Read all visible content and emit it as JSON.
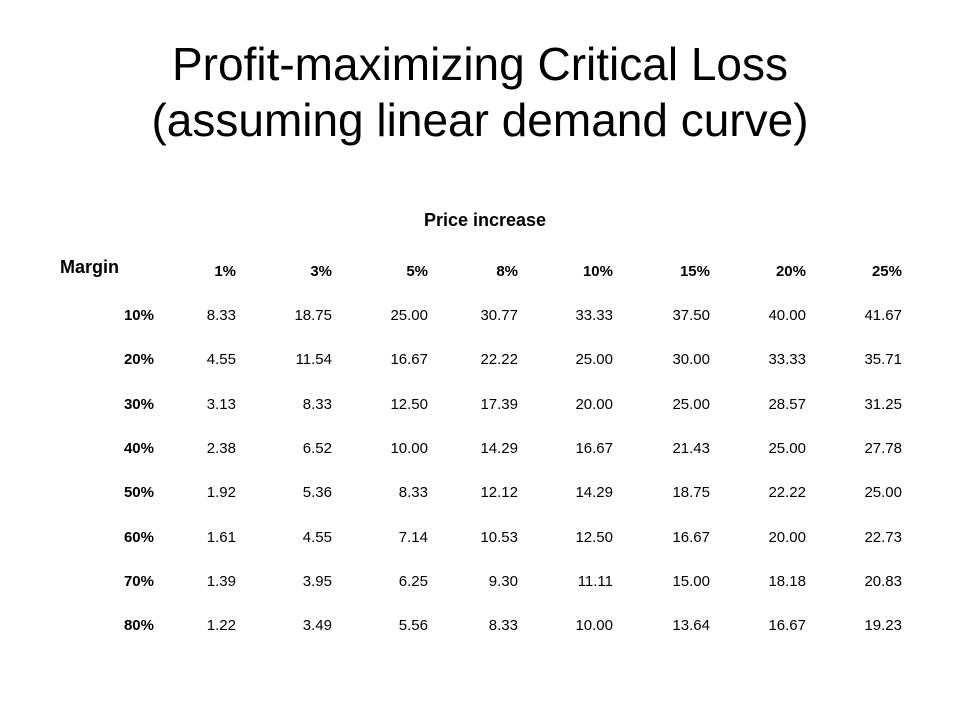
{
  "title_line1": "Profit-maximizing Critical Loss",
  "title_line2": "(assuming linear demand curve)",
  "column_group_label": "Price increase",
  "row_group_label": "Margin",
  "columns": [
    "1%",
    "3%",
    "5%",
    "8%",
    "10%",
    "15%",
    "20%",
    "25%"
  ],
  "rows": [
    {
      "margin": "10%",
      "values": [
        "8.33",
        "18.75",
        "25.00",
        "30.77",
        "33.33",
        "37.50",
        "40.00",
        "41.67"
      ]
    },
    {
      "margin": "20%",
      "values": [
        "4.55",
        "11.54",
        "16.67",
        "22.22",
        "25.00",
        "30.00",
        "33.33",
        "35.71"
      ]
    },
    {
      "margin": "30%",
      "values": [
        "3.13",
        "8.33",
        "12.50",
        "17.39",
        "20.00",
        "25.00",
        "28.57",
        "31.25"
      ]
    },
    {
      "margin": "40%",
      "values": [
        "2.38",
        "6.52",
        "10.00",
        "14.29",
        "16.67",
        "21.43",
        "25.00",
        "27.78"
      ]
    },
    {
      "margin": "50%",
      "values": [
        "1.92",
        "5.36",
        "8.33",
        "12.12",
        "14.29",
        "18.75",
        "22.22",
        "25.00"
      ]
    },
    {
      "margin": "60%",
      "values": [
        "1.61",
        "4.55",
        "7.14",
        "10.53",
        "12.50",
        "16.67",
        "20.00",
        "22.73"
      ]
    },
    {
      "margin": "70%",
      "values": [
        "1.39",
        "3.95",
        "6.25",
        "9.30",
        "11.11",
        "15.00",
        "18.18",
        "20.83"
      ]
    },
    {
      "margin": "80%",
      "values": [
        "1.22",
        "3.49",
        "5.56",
        "8.33",
        "10.00",
        "13.64",
        "16.67",
        "19.23"
      ]
    }
  ]
}
